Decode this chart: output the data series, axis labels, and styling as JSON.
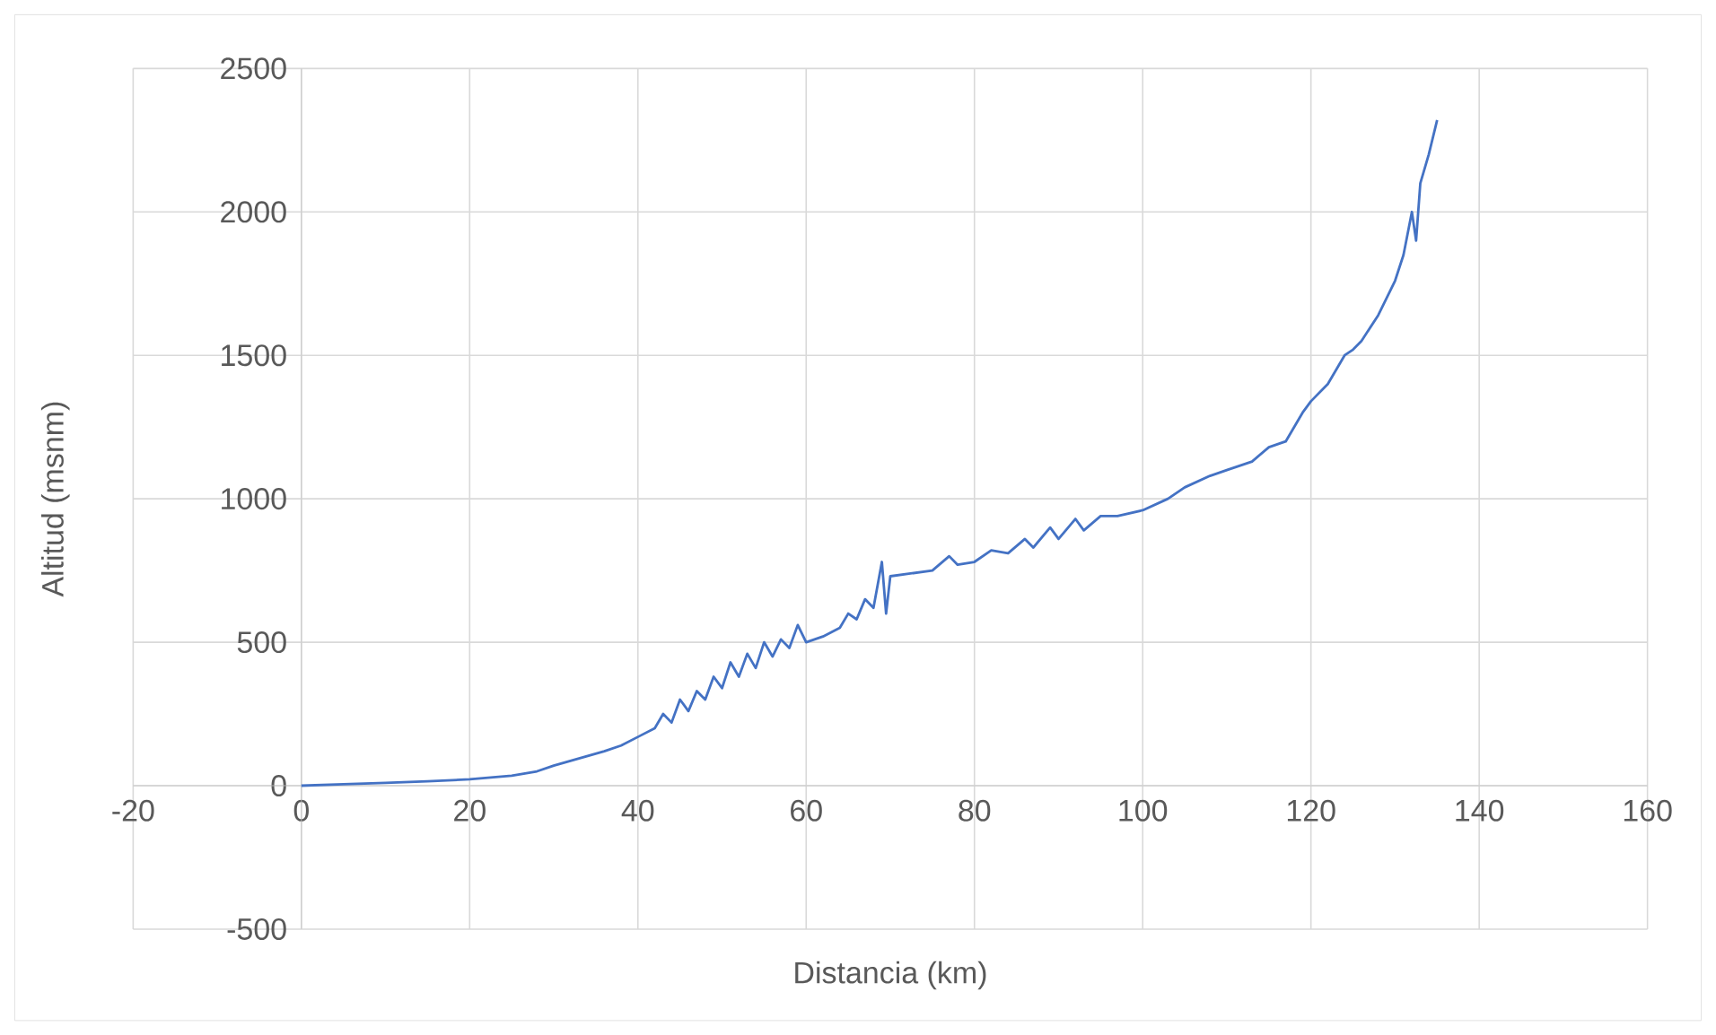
{
  "chart_data": {
    "type": "line",
    "xlabel": "Distancia (km)",
    "ylabel": "Altitud (msnm)",
    "xlim": [
      -20,
      160
    ],
    "ylim": [
      -500,
      2500
    ],
    "xticks": [
      -20,
      0,
      20,
      40,
      60,
      80,
      100,
      120,
      140,
      160
    ],
    "yticks": [
      -500,
      0,
      500,
      1000,
      1500,
      2000,
      2500
    ],
    "grid": true,
    "marker": "none",
    "line_style": "solid",
    "series": [
      {
        "color": "#4472c4",
        "x": [
          0,
          5,
          10,
          15,
          20,
          25,
          28,
          30,
          33,
          36,
          38,
          40,
          42,
          43,
          44,
          45,
          46,
          47,
          48,
          49,
          50,
          51,
          52,
          53,
          54,
          55,
          56,
          57,
          58,
          59,
          60,
          62,
          64,
          65,
          66,
          67,
          68,
          69,
          69.5,
          70,
          75,
          77,
          78,
          80,
          82,
          84,
          86,
          87,
          89,
          90,
          92,
          93,
          95,
          97,
          100,
          103,
          105,
          108,
          110,
          113,
          115,
          117,
          118,
          119,
          120,
          122,
          123,
          124,
          125,
          126,
          128,
          130,
          131,
          132,
          132.5,
          133,
          134,
          135
        ],
        "values": [
          0,
          5,
          10,
          15,
          22,
          35,
          50,
          70,
          95,
          120,
          140,
          170,
          200,
          250,
          220,
          300,
          260,
          330,
          300,
          380,
          340,
          430,
          380,
          460,
          410,
          500,
          450,
          510,
          480,
          560,
          500,
          520,
          550,
          600,
          580,
          650,
          620,
          780,
          600,
          730,
          750,
          800,
          770,
          780,
          820,
          810,
          860,
          830,
          900,
          860,
          930,
          890,
          940,
          940,
          960,
          1000,
          1040,
          1080,
          1100,
          1130,
          1180,
          1200,
          1250,
          1300,
          1340,
          1400,
          1450,
          1500,
          1520,
          1550,
          1640,
          1760,
          1850,
          2000,
          1900,
          2100,
          2200,
          2320
        ]
      }
    ]
  }
}
